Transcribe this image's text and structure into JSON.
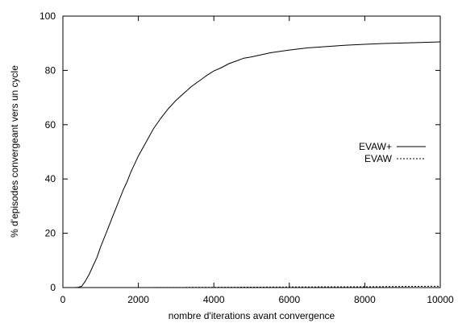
{
  "chart_data": {
    "type": "line",
    "title": "",
    "xlabel": "nombre d'iterations avant convergence",
    "ylabel": "% d'episodes convergeant vers un cycle",
    "xlim": [
      0,
      10000
    ],
    "ylim": [
      0,
      100
    ],
    "x_ticks": [
      0,
      2000,
      4000,
      6000,
      8000,
      10000
    ],
    "y_ticks": [
      0,
      20,
      40,
      60,
      80,
      100
    ],
    "grid": false,
    "legend_position": "right",
    "series": [
      {
        "name": "EVAW+",
        "style": "solid",
        "color": "#000000",
        "x": [
          0,
          300,
          400,
          500,
          600,
          700,
          800,
          900,
          1000,
          1100,
          1200,
          1300,
          1400,
          1500,
          1600,
          1700,
          1800,
          1900,
          2000,
          2200,
          2400,
          2600,
          2800,
          3000,
          3200,
          3400,
          3600,
          3800,
          4000,
          4200,
          4400,
          4600,
          4800,
          5000,
          5500,
          6000,
          6500,
          7000,
          7500,
          8000,
          8500,
          9000,
          9500,
          10000
        ],
        "y": [
          0,
          0,
          0.1,
          0.5,
          2.5,
          5,
          8,
          11,
          15,
          18.5,
          22,
          25.5,
          29,
          32.5,
          36,
          39,
          42.5,
          45.5,
          48.5,
          53.5,
          58.5,
          62.5,
          66,
          69,
          71.5,
          74,
          76,
          78,
          79.8,
          81,
          82.5,
          83.5,
          84.5,
          85,
          86.5,
          87.5,
          88.3,
          88.8,
          89.3,
          89.6,
          89.9,
          90.1,
          90.3,
          90.5
        ]
      },
      {
        "name": "EVAW",
        "style": "dashed",
        "color": "#000000",
        "x": [
          0,
          2000,
          4000,
          6000,
          8000,
          10000
        ],
        "y": [
          0,
          0,
          0.1,
          0.2,
          0.3,
          0.5
        ]
      }
    ]
  }
}
